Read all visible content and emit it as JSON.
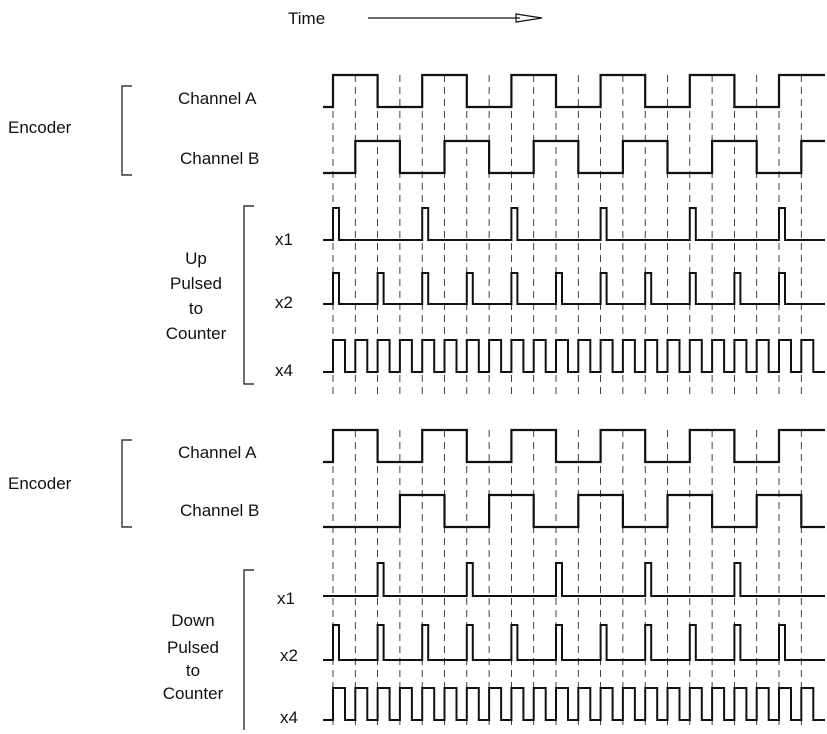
{
  "time_label": "Time",
  "sections": [
    {
      "group_label": "Encoder",
      "channels": [
        {
          "label": "Channel A",
          "rises": [
            0,
            4,
            8,
            12,
            16,
            20
          ],
          "falls": [
            2,
            6,
            10,
            14,
            18
          ]
        },
        {
          "label": "Channel B",
          "rises": [
            1,
            5,
            9,
            13,
            17,
            21
          ],
          "falls": [
            3,
            7,
            11,
            15,
            19
          ]
        }
      ]
    },
    {
      "group_label_lines": [
        "Up",
        "Pulsed",
        "to",
        "Counter"
      ],
      "outputs": [
        {
          "label": "x1",
          "pulses": [
            0,
            4,
            8,
            12,
            16,
            20
          ]
        },
        {
          "label": "x2",
          "pulses": [
            0,
            2,
            4,
            6,
            8,
            10,
            12,
            14,
            16,
            18,
            20
          ]
        },
        {
          "label": "x4",
          "pulses": [
            0,
            1,
            2,
            3,
            4,
            5,
            6,
            7,
            8,
            9,
            10,
            11,
            12,
            13,
            14,
            15,
            16,
            17,
            18,
            19,
            20,
            21
          ]
        }
      ]
    },
    {
      "group_label": "Encoder",
      "channels": [
        {
          "label": "Channel A",
          "rises": [
            0,
            4,
            8,
            12,
            16,
            20
          ],
          "falls": [
            2,
            6,
            10,
            14,
            18
          ]
        },
        {
          "label": "Channel B",
          "rises": [
            3,
            7,
            11,
            15,
            19
          ],
          "falls": [
            1,
            5,
            9,
            13,
            17,
            21
          ]
        }
      ]
    },
    {
      "group_label_lines": [
        "Down",
        "Pulsed",
        "to",
        "Counter"
      ],
      "outputs": [
        {
          "label": "x1",
          "pulses": [
            2,
            6,
            10,
            14,
            18
          ]
        },
        {
          "label": "x2",
          "pulses": [
            0,
            2,
            4,
            6,
            8,
            10,
            12,
            14,
            16,
            18,
            20
          ]
        },
        {
          "label": "x4",
          "pulses": [
            0,
            1,
            2,
            3,
            4,
            5,
            6,
            7,
            8,
            9,
            10,
            11,
            12,
            13,
            14,
            15,
            16,
            17,
            18,
            19,
            20,
            21
          ]
        }
      ]
    }
  ]
}
